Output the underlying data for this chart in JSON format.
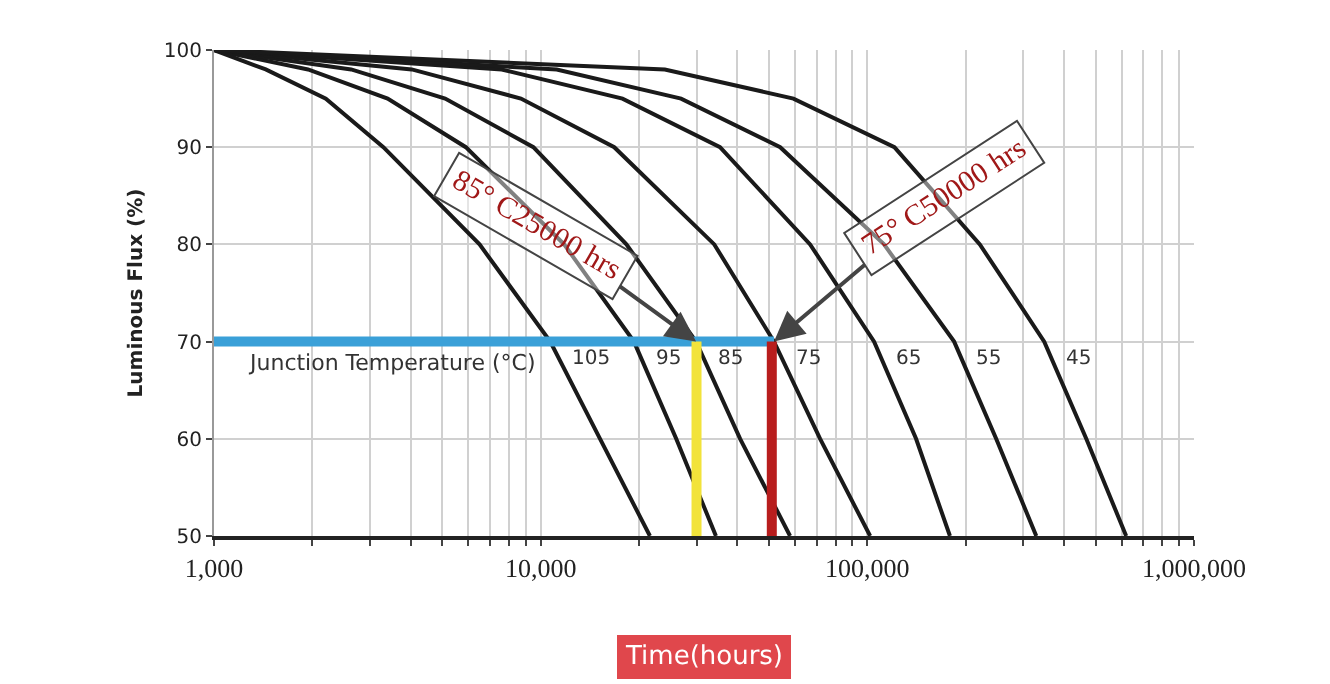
{
  "chart_data": {
    "type": "line",
    "xlabel": "Time(hours)",
    "ylabel": "Luminous Flux (%)",
    "log": "x",
    "grid": true,
    "legend": false,
    "marker": "none",
    "line_style": "solid",
    "xlim": [
      1000,
      1000000
    ],
    "ylim": [
      50,
      100
    ],
    "xticks": [
      {
        "value": 1000,
        "label": "1,000"
      },
      {
        "value": 2000,
        "label": null
      },
      {
        "value": 3000,
        "label": null
      },
      {
        "value": 4000,
        "label": null
      },
      {
        "value": 5000,
        "label": null
      },
      {
        "value": 6000,
        "label": null
      },
      {
        "value": 7000,
        "label": null
      },
      {
        "value": 8000,
        "label": null
      },
      {
        "value": 9000,
        "label": null
      },
      {
        "value": 10000,
        "label": "10,000"
      },
      {
        "value": 20000,
        "label": null
      },
      {
        "value": 30000,
        "label": null
      },
      {
        "value": 40000,
        "label": null
      },
      {
        "value": 50000,
        "label": null
      },
      {
        "value": 60000,
        "label": null
      },
      {
        "value": 70000,
        "label": null
      },
      {
        "value": 80000,
        "label": null
      },
      {
        "value": 90000,
        "label": null
      },
      {
        "value": 100000,
        "label": "100,000"
      },
      {
        "value": 200000,
        "label": null
      },
      {
        "value": 300000,
        "label": null
      },
      {
        "value": 400000,
        "label": null
      },
      {
        "value": 500000,
        "label": null
      },
      {
        "value": 600000,
        "label": null
      },
      {
        "value": 700000,
        "label": null
      },
      {
        "value": 800000,
        "label": null
      },
      {
        "value": 900000,
        "label": null
      },
      {
        "value": 1000000,
        "label": "1,000,000"
      }
    ],
    "yticks": [
      50,
      60,
      70,
      80,
      90,
      100
    ],
    "series": [
      {
        "name": "105",
        "color": "#1a1a1a",
        "x": [
          1000,
          1440,
          2200,
          3300,
          6500,
          10700,
          15200,
          21600
        ],
        "values": [
          100,
          98,
          95,
          90,
          80,
          70,
          60,
          50
        ]
      },
      {
        "name": "95",
        "color": "#1a1a1a",
        "x": [
          1000,
          1940,
          3400,
          5900,
          11800,
          19300,
          26000,
          34400
        ],
        "values": [
          100,
          98,
          95,
          90,
          80,
          70,
          60,
          50
        ]
      },
      {
        "name": "85",
        "color": "#1a1a1a",
        "x": [
          1000,
          2630,
          5100,
          9500,
          18300,
          29900,
          40800,
          58000
        ],
        "values": [
          100,
          98,
          95,
          90,
          80,
          70,
          60,
          50
        ]
      },
      {
        "name": "75",
        "color": "#1a1a1a",
        "x": [
          1000,
          4030,
          8700,
          16800,
          34000,
          51800,
          71700,
          102000
        ],
        "values": [
          100,
          98,
          95,
          90,
          80,
          70,
          60,
          50
        ]
      },
      {
        "name": "65",
        "color": "#1a1a1a",
        "x": [
          1000,
          7600,
          17800,
          35400,
          66800,
          104900,
          141000,
          179000
        ],
        "values": [
          100,
          98,
          95,
          90,
          80,
          70,
          60,
          50
        ]
      },
      {
        "name": "55",
        "color": "#1a1a1a",
        "x": [
          1000,
          11200,
          26900,
          54100,
          112500,
          184400,
          248000,
          329000
        ],
        "values": [
          100,
          98,
          95,
          90,
          80,
          70,
          60,
          50
        ]
      },
      {
        "name": "45",
        "color": "#1a1a1a",
        "x": [
          1000,
          24000,
          59400,
          121000,
          221000,
          348000,
          468000,
          620000
        ],
        "values": [
          100,
          98,
          95,
          90,
          80,
          70,
          60,
          50
        ]
      },
      {
        "color": "#3aa0d8",
        "x": [
          1000,
          51800
        ],
        "values": [
          70,
          70
        ]
      },
      {
        "color": "#f2e33a",
        "x": [
          30000,
          30000
        ],
        "values": [
          50,
          70
        ]
      },
      {
        "color": "#b81d1d",
        "x": [
          51000,
          51000
        ],
        "values": [
          50,
          70
        ]
      }
    ],
    "annotations": [
      "Junction Temperature (°C)",
      {
        "text": "85° C25000 hrs",
        "x": 29900,
        "y": 70
      },
      {
        "text": "75° C50000 hrs",
        "x": 51800,
        "y": 70
      }
    ]
  }
}
